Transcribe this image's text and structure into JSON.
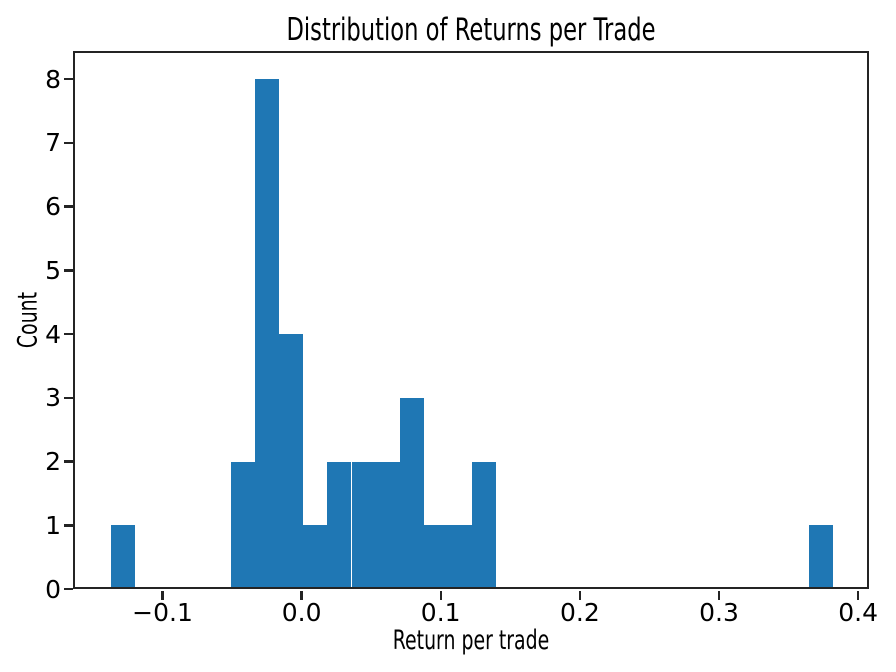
{
  "figure": {
    "background_color": "#ffffff",
    "text_color": "#000000",
    "spine_color": "#242424"
  },
  "chart_data": {
    "type": "bar",
    "subtype": "histogram",
    "title": "Distribution of Returns per Trade",
    "xlabel": "Return per trade",
    "ylabel": "Count",
    "bar_color": "#1f77b4",
    "grid": false,
    "legend": false,
    "xlim": [
      -0.1643,
      0.4078
    ],
    "ylim": [
      0,
      8.44
    ],
    "bins": {
      "start": -0.1371,
      "width": 0.017295,
      "counts": [
        1,
        0,
        0,
        0,
        0,
        2,
        8,
        4,
        1,
        2,
        2,
        2,
        3,
        1,
        1,
        2,
        0,
        0,
        0,
        0,
        0,
        0,
        0,
        0,
        0,
        0,
        0,
        0,
        0,
        1
      ]
    },
    "x_ticks": [
      {
        "value": -0.1,
        "label": "−0.1"
      },
      {
        "value": 0.0,
        "label": "0.0"
      },
      {
        "value": 0.1,
        "label": "0.1"
      },
      {
        "value": 0.2,
        "label": "0.2"
      },
      {
        "value": 0.3,
        "label": "0.3"
      },
      {
        "value": 0.4,
        "label": "0.4"
      }
    ],
    "y_ticks": [
      {
        "value": 0,
        "label": "0"
      },
      {
        "value": 1,
        "label": "1"
      },
      {
        "value": 2,
        "label": "2"
      },
      {
        "value": 3,
        "label": "3"
      },
      {
        "value": 4,
        "label": "4"
      },
      {
        "value": 5,
        "label": "5"
      },
      {
        "value": 6,
        "label": "6"
      },
      {
        "value": 7,
        "label": "7"
      },
      {
        "value": 8,
        "label": "8"
      }
    ]
  }
}
